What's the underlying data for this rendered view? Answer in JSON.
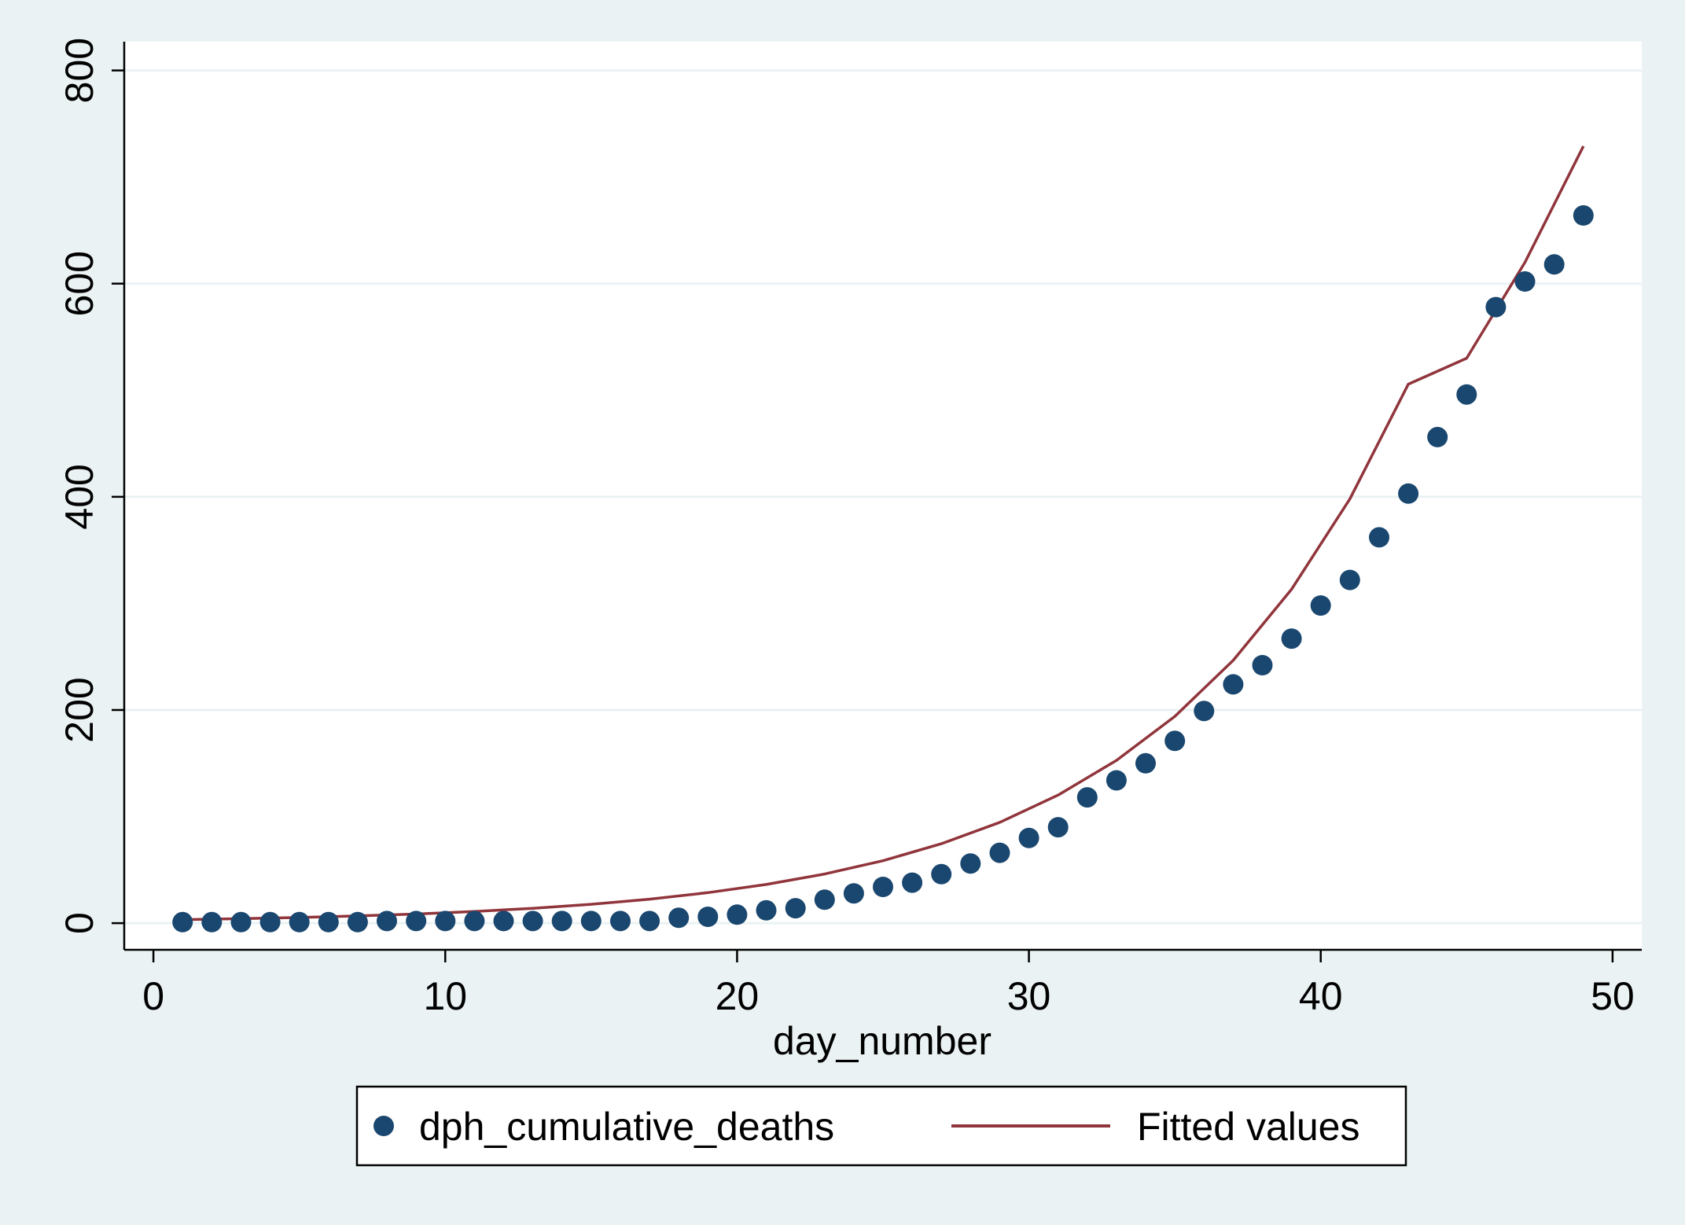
{
  "chart_data": {
    "type": "scatter",
    "title": "",
    "xlabel": "day_number",
    "ylabel": "",
    "xlim": [
      -1,
      51
    ],
    "ylim": [
      -25,
      827
    ],
    "xticks": [
      0,
      10,
      20,
      30,
      40,
      50
    ],
    "yticks": [
      0,
      200,
      400,
      600,
      800
    ],
    "grid": "horizontal",
    "legend_position": "bottom",
    "colors": {
      "background": "#eaf2f3",
      "plot_area": "#ffffff",
      "gridline": "#eaf2f3",
      "points": "#1a476f",
      "fit_line": "#90353b"
    },
    "series": [
      {
        "name": "dph_cumulative_deaths",
        "kind": "scatter",
        "x": [
          1,
          2,
          3,
          4,
          5,
          6,
          7,
          8,
          9,
          10,
          11,
          12,
          13,
          14,
          15,
          16,
          17,
          18,
          19,
          20,
          21,
          22,
          23,
          24,
          25,
          26,
          27,
          28,
          29,
          30,
          31,
          32,
          33,
          34,
          35,
          36,
          37,
          38,
          39,
          40,
          41,
          42,
          43,
          44,
          45,
          46,
          47,
          48,
          49
        ],
        "y": [
          1,
          1,
          1,
          1,
          1,
          1,
          1,
          2,
          2,
          2,
          2,
          2,
          2,
          2,
          2,
          2,
          2,
          5,
          6,
          8,
          12,
          14,
          22,
          28,
          34,
          38,
          46,
          56,
          66,
          80,
          90,
          118,
          134,
          150,
          171,
          199,
          224,
          242,
          267,
          298,
          322,
          362,
          403,
          456,
          496,
          578,
          602,
          618,
          664
        ]
      },
      {
        "name": "Fitted values",
        "kind": "line",
        "x": [
          1,
          3,
          5,
          7,
          9,
          11,
          13,
          15,
          17,
          19,
          21,
          23,
          25,
          27,
          29,
          31,
          33,
          35,
          37,
          39,
          41,
          43,
          45,
          47,
          49
        ],
        "y": [
          3.3,
          4.2,
          5.3,
          6.8,
          8.6,
          11.0,
          13.9,
          17.7,
          22.5,
          28.6,
          36.3,
          46.1,
          58.6,
          74.5,
          94.6,
          120.2,
          152.7,
          194.0,
          246.5,
          313.2,
          398.0,
          505.7,
          530.0,
          620.0,
          729.0
        ]
      }
    ]
  }
}
